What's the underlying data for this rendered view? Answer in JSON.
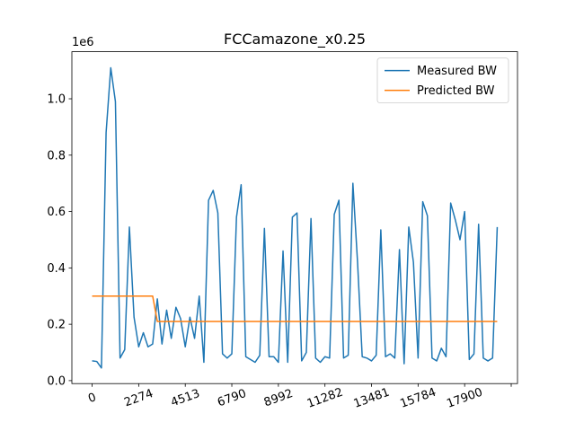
{
  "chart_data": {
    "type": "line",
    "title": "FCCamazone_x0.25",
    "y_offset_label": "1e6",
    "xlim": [
      -4.35,
      91.35
    ],
    "xticks": [
      {
        "value": 0,
        "label": "0"
      },
      {
        "value": 10,
        "label": "2274"
      },
      {
        "value": 20,
        "label": "4513"
      },
      {
        "value": 30,
        "label": "6790"
      },
      {
        "value": 40,
        "label": "8992"
      },
      {
        "value": 50,
        "label": "11282"
      },
      {
        "value": 60,
        "label": "13481"
      },
      {
        "value": 70,
        "label": "15784"
      },
      {
        "value": 80,
        "label": "17900"
      },
      {
        "value": 90,
        "label": null
      }
    ],
    "ylim": [
      -0.0105,
      1.167
    ],
    "yticks": [
      {
        "value": 0,
        "label": "0.0"
      },
      0.2,
      0.4,
      0.6,
      0.8,
      {
        "value": 1,
        "label": "1.0"
      }
    ],
    "legend": "upper right",
    "series": [
      {
        "name": "Measured BW",
        "color": "#1f77b4",
        "values": [
          0.07,
          0.068,
          0.045,
          0.88,
          1.11,
          0.99,
          0.08,
          0.11,
          0.545,
          0.225,
          0.12,
          0.17,
          0.12,
          0.13,
          0.29,
          0.13,
          0.25,
          0.15,
          0.26,
          0.22,
          0.12,
          0.225,
          0.15,
          0.3,
          0.065,
          0.64,
          0.675,
          0.595,
          0.095,
          0.08,
          0.095,
          0.58,
          0.695,
          0.085,
          0.075,
          0.065,
          0.09,
          0.54,
          0.085,
          0.085,
          0.065,
          0.46,
          0.065,
          0.58,
          0.595,
          0.07,
          0.1,
          0.575,
          0.08,
          0.065,
          0.085,
          0.08,
          0.59,
          0.64,
          0.08,
          0.09,
          0.7,
          0.42,
          0.085,
          0.08,
          0.07,
          0.09,
          0.535,
          0.085,
          0.095,
          0.08,
          0.465,
          0.06,
          0.545,
          0.42,
          0.08,
          0.635,
          0.585,
          0.08,
          0.07,
          0.115,
          0.085,
          0.63,
          0.57,
          0.5,
          0.6,
          0.075,
          0.095,
          0.555,
          0.08,
          0.07,
          0.08,
          0.545
        ]
      },
      {
        "name": "Predicted BW",
        "color": "#ff7f0e",
        "values": [
          0.3,
          0.3,
          0.3,
          0.3,
          0.3,
          0.3,
          0.3,
          0.3,
          0.3,
          0.3,
          0.3,
          0.3,
          0.3,
          0.3,
          0.21,
          0.21,
          0.21,
          0.21,
          0.21,
          0.21,
          0.21,
          0.21,
          0.21,
          0.21,
          0.21,
          0.21,
          0.21,
          0.21,
          0.21,
          0.21,
          0.21,
          0.21,
          0.21,
          0.21,
          0.21,
          0.21,
          0.21,
          0.21,
          0.21,
          0.21,
          0.21,
          0.21,
          0.21,
          0.21,
          0.21,
          0.21,
          0.21,
          0.21,
          0.21,
          0.21,
          0.21,
          0.21,
          0.21,
          0.21,
          0.21,
          0.21,
          0.21,
          0.21,
          0.21,
          0.21,
          0.21,
          0.21,
          0.21,
          0.21,
          0.21,
          0.21,
          0.21,
          0.21,
          0.21,
          0.21,
          0.21,
          0.21,
          0.21,
          0.21,
          0.21,
          0.21,
          0.21,
          0.21,
          0.21,
          0.21,
          0.21,
          0.21,
          0.21,
          0.21,
          0.21,
          0.21,
          0.21,
          0.21
        ]
      }
    ]
  }
}
